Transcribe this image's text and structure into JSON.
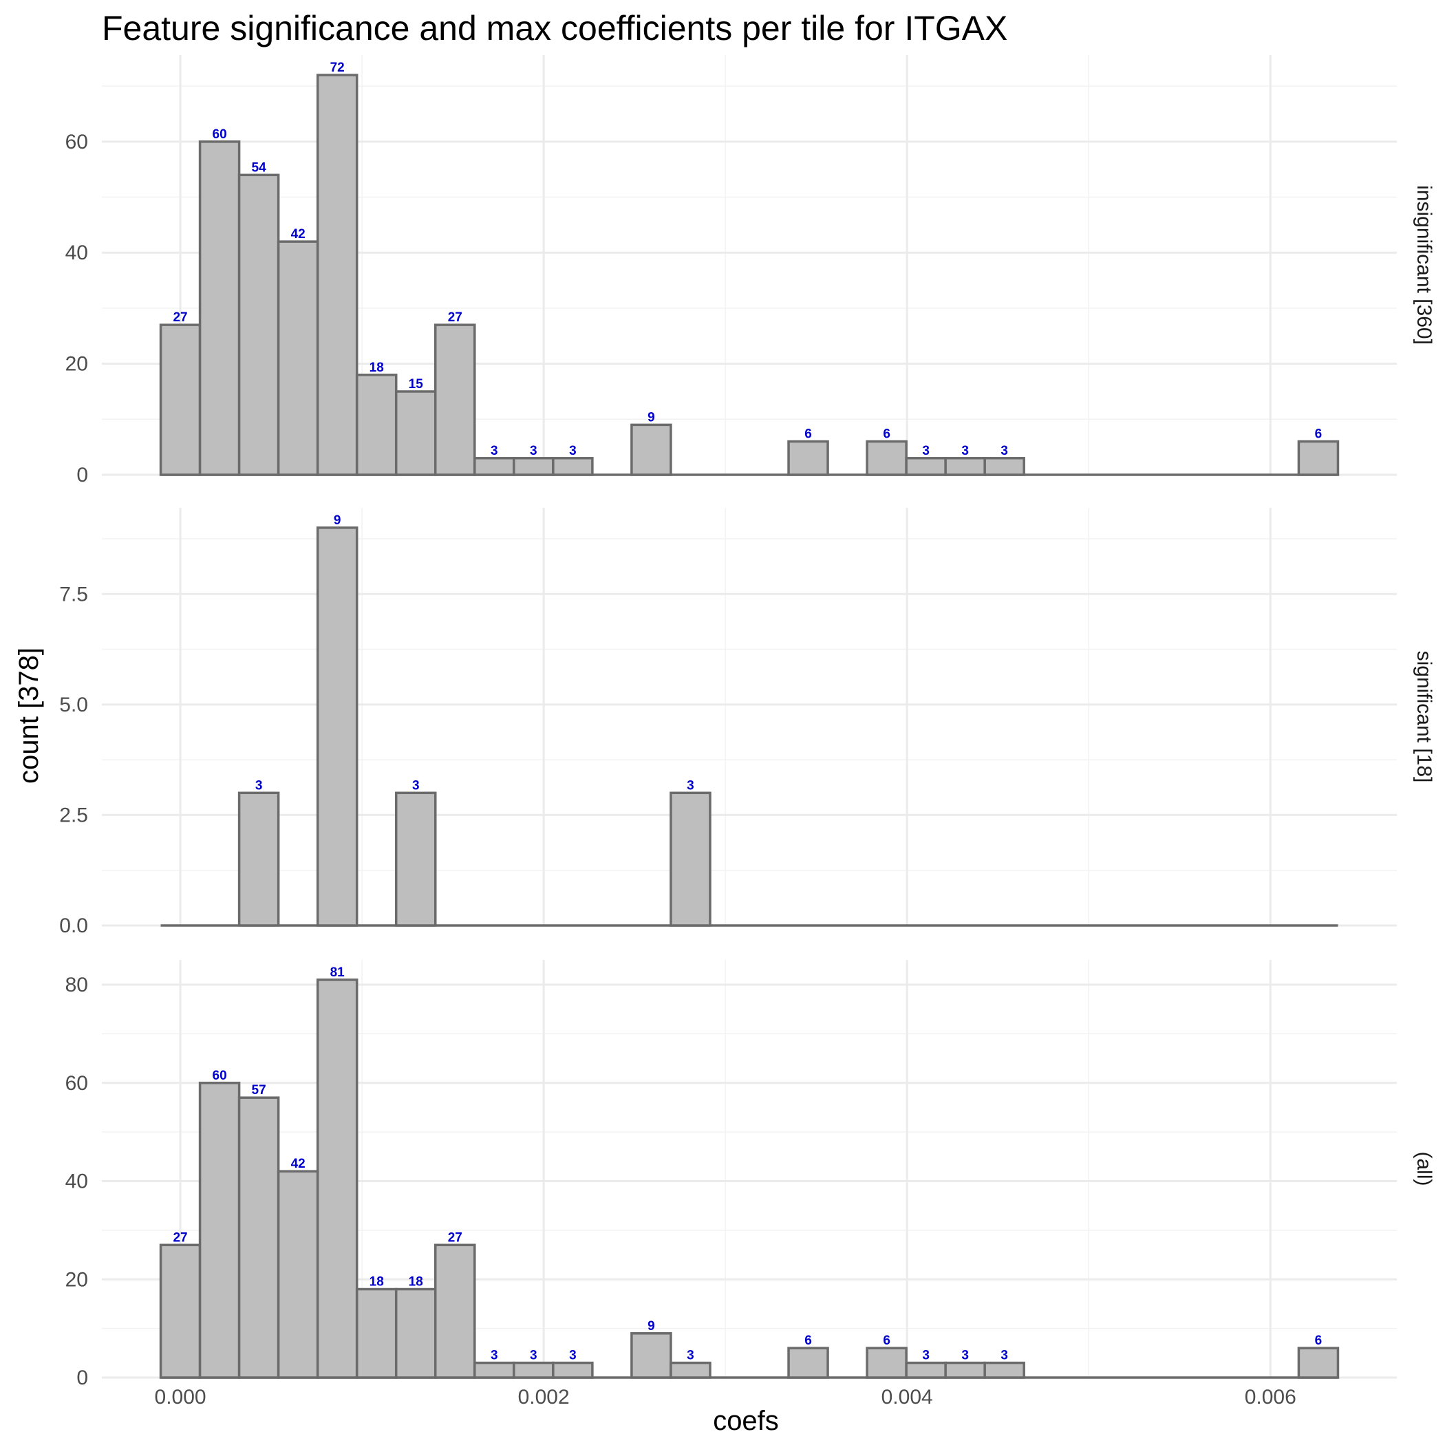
{
  "chart_data": {
    "type": "bar",
    "title": "Feature significance and max coefficients per tile for ITGAX",
    "xlabel": "coefs",
    "ylabel": "count [378]",
    "bin_width": 0.000216,
    "bin_centers": [
      0.0,
      0.000216,
      0.000432,
      0.000648,
      0.000864,
      0.00108,
      0.001296,
      0.001512,
      0.001728,
      0.001944,
      0.00216,
      0.002376,
      0.002592,
      0.002808,
      0.003024,
      0.00324,
      0.003456,
      0.003672,
      0.003888,
      0.004104,
      0.00432,
      0.004536,
      0.004752,
      0.004968,
      0.005184,
      0.0054,
      0.005616,
      0.005832,
      0.006048,
      0.006264
    ],
    "xlim": [
      -0.000432,
      0.006696
    ],
    "x_ticks": [
      0.0,
      0.002,
      0.004,
      0.006
    ],
    "x_tick_labels": [
      "0.000",
      "0.002",
      "0.004",
      "0.006"
    ],
    "grid": true,
    "panels": [
      {
        "name": "insignificant [360]",
        "ylim": [
          0,
          75.6
        ],
        "y_ticks": [
          0,
          20,
          40,
          60
        ],
        "y_tick_labels": [
          "0",
          "20",
          "40",
          "60"
        ],
        "values": [
          27,
          60,
          54,
          42,
          72,
          18,
          15,
          27,
          3,
          3,
          3,
          0,
          9,
          0,
          0,
          0,
          6,
          0,
          6,
          3,
          3,
          3,
          0,
          0,
          0,
          0,
          0,
          0,
          0,
          6
        ]
      },
      {
        "name": "significant [18]",
        "ylim": [
          0,
          9.45
        ],
        "y_ticks": [
          0,
          2.5,
          5,
          7.5
        ],
        "y_tick_labels": [
          "0.0",
          "2.5",
          "5.0",
          "7.5"
        ],
        "values": [
          0,
          0,
          3,
          0,
          9,
          0,
          3,
          0,
          0,
          0,
          0,
          0,
          0,
          3,
          0,
          0,
          0,
          0,
          0,
          0,
          0,
          0,
          0,
          0,
          0,
          0,
          0,
          0,
          0,
          0
        ]
      },
      {
        "name": "(all)",
        "ylim": [
          0,
          85.05
        ],
        "y_ticks": [
          0,
          20,
          40,
          60,
          80
        ],
        "y_tick_labels": [
          "0",
          "20",
          "40",
          "60",
          "80"
        ],
        "values": [
          27,
          60,
          57,
          42,
          81,
          18,
          18,
          27,
          3,
          3,
          3,
          0,
          9,
          3,
          0,
          0,
          6,
          0,
          6,
          3,
          3,
          3,
          0,
          0,
          0,
          0,
          0,
          0,
          0,
          6
        ]
      }
    ],
    "colors": {
      "bar_fill": "#bebebe",
      "bar_outline": "#6b6b6b",
      "label": "#0000cc"
    }
  }
}
